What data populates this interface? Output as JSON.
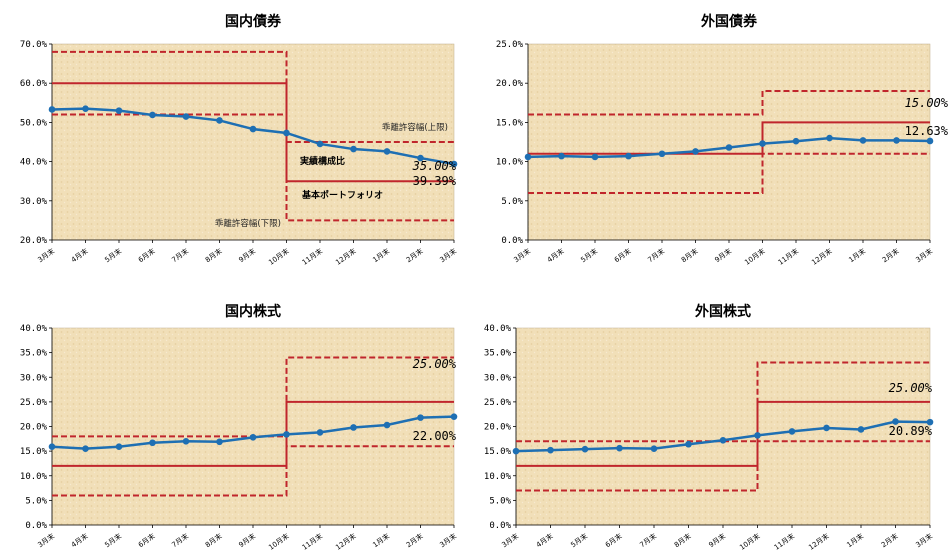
{
  "chart_data": [
    {
      "type": "line",
      "title": "国内債券",
      "categories": [
        "3月末",
        "4月末",
        "5月末",
        "6月末",
        "7月末",
        "8月末",
        "9月末",
        "10月末",
        "11月末",
        "12月末",
        "1月末",
        "2月末",
        "3月末"
      ],
      "ylim": [
        20,
        70
      ],
      "yticks": [
        "20.0%",
        "30.0%",
        "40.0%",
        "50.0%",
        "60.0%",
        "70.0%"
      ],
      "series": [
        {
          "name": "実績構成比",
          "values": [
            53.3,
            53.5,
            53.0,
            51.9,
            51.5,
            50.5,
            48.3,
            47.3,
            44.5,
            43.2,
            42.6,
            40.9,
            39.39
          ]
        },
        {
          "name": "基本ポートフォリオ",
          "values": [
            60,
            60,
            60,
            60,
            60,
            60,
            60,
            60,
            35,
            35,
            35,
            35,
            35
          ]
        },
        {
          "name": "乖離許容幅(上限)",
          "values": [
            68,
            68,
            68,
            68,
            68,
            68,
            68,
            68,
            45,
            45,
            45,
            45,
            45
          ]
        },
        {
          "name": "乖離許容幅(下限)",
          "values": [
            52,
            52,
            52,
            52,
            52,
            52,
            52,
            52,
            25,
            25,
            25,
            25,
            25
          ]
        }
      ],
      "annotations": [
        "乖離許容幅(上限)",
        "実績構成比",
        "基本ポートフォリオ",
        "乖離許容幅(下限)"
      ],
      "end_label": "39.39%",
      "target_label": "35.00%"
    },
    {
      "type": "line",
      "title": "外国債券",
      "categories": [
        "3月末",
        "4月末",
        "5月末",
        "6月末",
        "7月末",
        "8月末",
        "9月末",
        "10月末",
        "11月末",
        "12月末",
        "1月末",
        "2月末",
        "3月末"
      ],
      "ylim": [
        0,
        25
      ],
      "yticks": [
        "0.0%",
        "5.0%",
        "10.0%",
        "15.0%",
        "20.0%",
        "25.0%"
      ],
      "series": [
        {
          "name": "実績構成比",
          "values": [
            10.6,
            10.7,
            10.6,
            10.7,
            11.0,
            11.3,
            11.8,
            12.3,
            12.6,
            13.0,
            12.7,
            12.7,
            12.63
          ]
        },
        {
          "name": "基本ポートフォリオ",
          "values": [
            11,
            11,
            11,
            11,
            11,
            11,
            11,
            11,
            15,
            15,
            15,
            15,
            15
          ]
        },
        {
          "name": "乖離許容幅(上限)",
          "values": [
            16,
            16,
            16,
            16,
            16,
            16,
            16,
            16,
            19,
            19,
            19,
            19,
            19
          ]
        },
        {
          "name": "乖離許容幅(下限)",
          "values": [
            6,
            6,
            6,
            6,
            6,
            6,
            6,
            6,
            11,
            11,
            11,
            11,
            11
          ]
        }
      ],
      "end_label": "12.63%",
      "target_label": "15.00%"
    },
    {
      "type": "line",
      "title": "国内株式",
      "categories": [
        "3月末",
        "4月末",
        "5月末",
        "6月末",
        "7月末",
        "8月末",
        "9月末",
        "10月末",
        "11月末",
        "12月末",
        "1月末",
        "2月末",
        "3月末"
      ],
      "ylim": [
        0,
        40
      ],
      "yticks": [
        "0.0%",
        "5.0%",
        "10.0%",
        "15.0%",
        "20.0%",
        "25.0%",
        "30.0%",
        "35.0%",
        "40.0%"
      ],
      "series": [
        {
          "name": "実績構成比",
          "values": [
            15.9,
            15.5,
            15.9,
            16.7,
            17.0,
            16.9,
            17.8,
            18.4,
            18.8,
            19.8,
            20.3,
            21.8,
            22.0
          ]
        },
        {
          "name": "基本ポートフォリオ",
          "values": [
            12,
            12,
            12,
            12,
            12,
            12,
            12,
            12,
            25,
            25,
            25,
            25,
            25
          ]
        },
        {
          "name": "乖離許容幅(上限)",
          "values": [
            18,
            18,
            18,
            18,
            18,
            18,
            18,
            18,
            34,
            34,
            34,
            34,
            34
          ]
        },
        {
          "name": "乖離許容幅(下限)",
          "values": [
            6,
            6,
            6,
            6,
            6,
            6,
            6,
            6,
            16,
            16,
            16,
            16,
            16
          ]
        }
      ],
      "end_label": "22.00%",
      "target_label": "25.00%"
    },
    {
      "type": "line",
      "title": "外国株式",
      "categories": [
        "3月末",
        "4月末",
        "5月末",
        "6月末",
        "7月末",
        "8月末",
        "9月末",
        "10月末",
        "11月末",
        "12月末",
        "1月末",
        "2月末",
        "3月末"
      ],
      "ylim": [
        0,
        40
      ],
      "yticks": [
        "0.0%",
        "5.0%",
        "10.0%",
        "15.0%",
        "20.0%",
        "25.0%",
        "30.0%",
        "35.0%",
        "40.0%"
      ],
      "series": [
        {
          "name": "実績構成比",
          "values": [
            15.0,
            15.2,
            15.4,
            15.6,
            15.5,
            16.4,
            17.2,
            18.2,
            19.0,
            19.7,
            19.4,
            21.0,
            20.89
          ]
        },
        {
          "name": "基本ポートフォリオ",
          "values": [
            12,
            12,
            12,
            12,
            12,
            12,
            12,
            12,
            25,
            25,
            25,
            25,
            25
          ]
        },
        {
          "name": "乖離許容幅(上限)",
          "values": [
            17,
            17,
            17,
            17,
            17,
            17,
            17,
            17,
            33,
            33,
            33,
            33,
            33
          ]
        },
        {
          "name": "乖離許容幅(下限)",
          "values": [
            7,
            7,
            7,
            7,
            7,
            7,
            7,
            7,
            17,
            17,
            17,
            17,
            17
          ]
        }
      ],
      "end_label": "20.89%",
      "target_label": "25.00%"
    }
  ],
  "colors": {
    "actual": "#1e6fb3",
    "band": "#c0262c",
    "plot_bg": "#f1dfb8"
  }
}
